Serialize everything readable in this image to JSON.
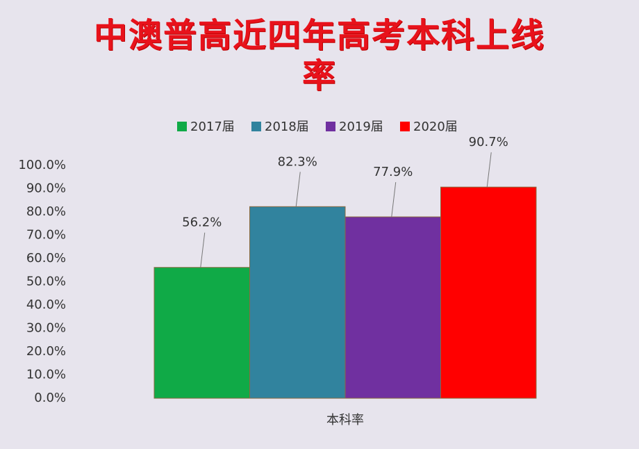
{
  "chart_data": {
    "type": "bar",
    "title": "中澳普高近四年高考本科上线率",
    "categories": [
      "本科率"
    ],
    "series": [
      {
        "name": "2017届",
        "color": "#10aa47",
        "values": [
          56.2
        ],
        "value_labels": [
          "56.2%"
        ]
      },
      {
        "name": "2018届",
        "color": "#31839e",
        "values": [
          82.3
        ],
        "value_labels": [
          "82.3%"
        ]
      },
      {
        "name": "2019届",
        "color": "#7030a0",
        "values": [
          77.9
        ],
        "value_labels": [
          "77.9%"
        ]
      },
      {
        "name": "2020届",
        "color": "#ff0000",
        "values": [
          90.7
        ],
        "value_labels": [
          "90.7%"
        ]
      }
    ],
    "ylim": [
      0,
      100
    ],
    "yticks": [
      {
        "value": 0,
        "label": "0.0%"
      },
      {
        "value": 10,
        "label": "10.0%"
      },
      {
        "value": 20,
        "label": "20.0%"
      },
      {
        "value": 30,
        "label": "30.0%"
      },
      {
        "value": 40,
        "label": "40.0%"
      },
      {
        "value": 50,
        "label": "50.0%"
      },
      {
        "value": 60,
        "label": "60.0%"
      },
      {
        "value": 70,
        "label": "70.0%"
      },
      {
        "value": 80,
        "label": "80.0%"
      },
      {
        "value": 90,
        "label": "90.0%"
      },
      {
        "value": 100,
        "label": "100.0%"
      }
    ],
    "legend": "top"
  }
}
